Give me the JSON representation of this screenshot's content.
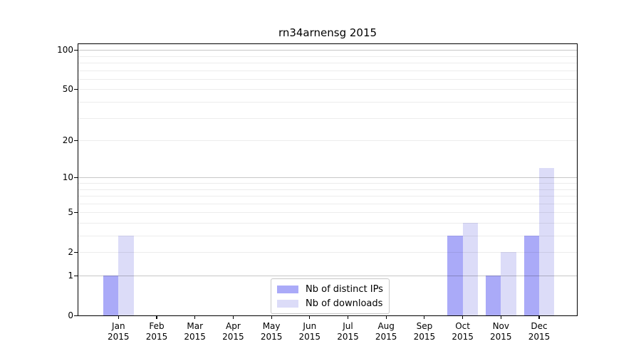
{
  "chart_data": {
    "type": "bar",
    "title": "rn34arnensg 2015",
    "categories": [
      "Jan",
      "Feb",
      "Mar",
      "Apr",
      "May",
      "Jun",
      "Jul",
      "Aug",
      "Sep",
      "Oct",
      "Nov",
      "Dec"
    ],
    "category_sublabel": "2015",
    "series": [
      {
        "name": "Nb of distinct IPs",
        "color": "#aaaaf8",
        "values": [
          1,
          0,
          0,
          0,
          0,
          0,
          0,
          0,
          0,
          3,
          1,
          3
        ]
      },
      {
        "name": "Nb of downloads",
        "color": "#dcdcf8",
        "values": [
          3,
          0,
          0,
          0,
          0,
          0,
          0,
          0,
          0,
          4,
          2,
          12
        ]
      }
    ],
    "y_scale": "log1p",
    "ylim": [
      0,
      112
    ],
    "y_axis_ticks": [
      0,
      1,
      2,
      5,
      10,
      20,
      50,
      100
    ],
    "major_gridlines": [
      1,
      10,
      100
    ],
    "minor_gridlines": [
      2,
      3,
      4,
      5,
      6,
      7,
      8,
      9,
      20,
      30,
      40,
      50,
      60,
      70,
      80,
      90
    ],
    "grid": true,
    "legend": {
      "position": "bottom-center",
      "entries": [
        {
          "label": "Nb of distinct IPs",
          "color": "#aaaaf8"
        },
        {
          "label": "Nb of downloads",
          "color": "#dcdcf8"
        }
      ]
    },
    "colors": {
      "axis": "#000000",
      "major_grid": "rgba(0,0,0,0.22)",
      "minor_grid": "rgba(0,0,0,0.075)",
      "background": "#ffffff"
    }
  }
}
